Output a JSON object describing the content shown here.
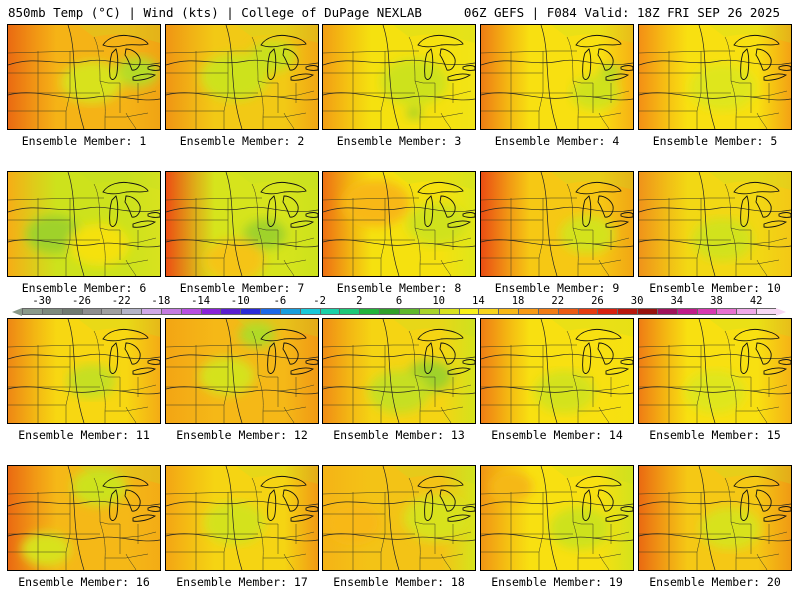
{
  "header": {
    "title": "850mb Temp (°C) | Wind (kts) | College of DuPage NEXLAB",
    "run_info": "06Z GEFS | F084 Valid: 18Z FRI SEP 26 2025"
  },
  "panels": [
    {
      "label": "Ensemble Member: 1",
      "base": "#f5b316",
      "west": "#ea6a12",
      "east": "#f0a414",
      "blobs": [
        [
          "#b5db28",
          0.85,
          0.45,
          0.14
        ],
        [
          "#d8e21e",
          0.55,
          0.55,
          0.2
        ]
      ]
    },
    {
      "label": "Ensemble Member: 2",
      "base": "#f2c915",
      "west": "#f09514",
      "east": "#f1a714",
      "blobs": [
        [
          "#cde21c",
          0.45,
          0.5,
          0.22
        ],
        [
          "#c9e01f",
          0.7,
          0.3,
          0.15
        ]
      ]
    },
    {
      "label": "Ensemble Member: 3",
      "base": "#f5e10f",
      "west": "#f29e14",
      "east": "#f1e416",
      "blobs": [
        [
          "#cde21c",
          0.6,
          0.55,
          0.22
        ],
        [
          "#9fd22b",
          0.6,
          0.85,
          0.05
        ]
      ]
    },
    {
      "label": "Ensemble Member: 4",
      "base": "#f8e011",
      "west": "#ee7c14",
      "east": "#f7b115",
      "blobs": [
        [
          "#d0e21c",
          0.75,
          0.65,
          0.16
        ],
        [
          "#b5db28",
          0.85,
          0.45,
          0.07
        ]
      ]
    },
    {
      "label": "Ensemble Member: 5",
      "base": "#f8e011",
      "west": "#f38f15",
      "east": "#f3a214",
      "blobs": [
        [
          "#dfe61a",
          0.55,
          0.6,
          0.22
        ]
      ]
    },
    {
      "label": "Ensemble Member: 6",
      "base": "#cde21c",
      "west": "#f6ad16",
      "east": "#d8e21e",
      "blobs": [
        [
          "#9fd22b",
          0.3,
          0.6,
          0.18
        ],
        [
          "#f5e10f",
          0.6,
          0.7,
          0.2
        ]
      ]
    },
    {
      "label": "Ensemble Member: 7",
      "base": "#d6e41c",
      "west": "#ec4e13",
      "east": "#cde21c",
      "blobs": [
        [
          "#9fd22b",
          0.65,
          0.6,
          0.14
        ],
        [
          "#f5c415",
          0.45,
          0.85,
          0.2
        ]
      ]
    },
    {
      "label": "Ensemble Member: 8",
      "base": "#f5e10f",
      "west": "#ee7013",
      "east": "#dfe61a",
      "blobs": [
        [
          "#f8b816",
          0.35,
          0.3,
          0.22
        ],
        [
          "#d0e21c",
          0.75,
          0.5,
          0.2
        ]
      ]
    },
    {
      "label": "Ensemble Member: 9",
      "base": "#f6c814",
      "west": "#ea4d13",
      "east": "#f1a714",
      "blobs": [
        [
          "#d4e21c",
          0.7,
          0.6,
          0.18
        ]
      ]
    },
    {
      "label": "Ensemble Member: 10",
      "base": "#f2d814",
      "west": "#f0931a",
      "east": "#f3c816",
      "blobs": [
        [
          "#d2e21c",
          0.55,
          0.65,
          0.2
        ]
      ]
    },
    {
      "label": "Ensemble Member: 11",
      "base": "#f7d712",
      "west": "#ee8714",
      "east": "#f3ac15",
      "blobs": [
        [
          "#c6df22",
          0.55,
          0.6,
          0.16
        ]
      ]
    },
    {
      "label": "Ensemble Member: 12",
      "base": "#f5b817",
      "west": "#f3a514",
      "east": "#f09a14",
      "blobs": [
        [
          "#b0da28",
          0.6,
          0.15,
          0.12
        ],
        [
          "#d5e21e",
          0.4,
          0.55,
          0.18
        ]
      ]
    },
    {
      "label": "Ensemble Member: 13",
      "base": "#f5d413",
      "west": "#f08d15",
      "east": "#d4e21c",
      "blobs": [
        [
          "#9fd22b",
          0.7,
          0.55,
          0.15
        ],
        [
          "#c6df22",
          0.5,
          0.7,
          0.2
        ]
      ]
    },
    {
      "label": "Ensemble Member: 14",
      "base": "#f8e011",
      "west": "#ef7d14",
      "east": "#f5e10f",
      "blobs": [
        [
          "#d4e21c",
          0.55,
          0.7,
          0.2
        ]
      ]
    },
    {
      "label": "Ensemble Member: 15",
      "base": "#f8e011",
      "west": "#ef7d14",
      "east": "#f5b316",
      "blobs": [
        [
          "#dfe61a",
          0.5,
          0.7,
          0.2
        ]
      ]
    },
    {
      "label": "Ensemble Member: 16",
      "base": "#f5b817",
      "west": "#ea6a12",
      "east": "#f3ac15",
      "blobs": [
        [
          "#cde21c",
          0.6,
          0.2,
          0.18
        ],
        [
          "#d8e21e",
          0.25,
          0.8,
          0.16
        ]
      ]
    },
    {
      "label": "Ensemble Member: 17",
      "base": "#f5d413",
      "west": "#f3a514",
      "east": "#f09a14",
      "blobs": [
        [
          "#d4e21c",
          0.45,
          0.55,
          0.2
        ]
      ]
    },
    {
      "label": "Ensemble Member: 18",
      "base": "#f3c316",
      "west": "#f5b316",
      "east": "#d6e41c",
      "blobs": [
        [
          "#d8e21e",
          0.75,
          0.5,
          0.22
        ],
        [
          "#f8b816",
          0.2,
          0.55,
          0.18
        ]
      ]
    },
    {
      "label": "Ensemble Member: 19",
      "base": "#f8e011",
      "west": "#f09514",
      "east": "#d4e21c",
      "blobs": [
        [
          "#cde21c",
          0.65,
          0.6,
          0.2
        ],
        [
          "#f5b817",
          0.2,
          0.2,
          0.14
        ]
      ]
    },
    {
      "label": "Ensemble Member: 20",
      "base": "#f5c815",
      "west": "#ea6a12",
      "east": "#f09a14",
      "blobs": [
        [
          "#d8e21e",
          0.6,
          0.6,
          0.2
        ]
      ]
    }
  ],
  "colorbar": {
    "ticks": [
      "-30",
      "-26",
      "-22",
      "-18",
      "-14",
      "-10",
      "-6",
      "-2",
      "2",
      "6",
      "10",
      "14",
      "18",
      "22",
      "26",
      "30",
      "34",
      "38",
      "42"
    ],
    "colors": [
      "#8a9a8a",
      "#7d8a7d",
      "#707a70",
      "#8e8e8e",
      "#a0a0a0",
      "#b4b4c8",
      "#d0a8e8",
      "#c47ae0",
      "#b84ee0",
      "#8a22d8",
      "#5a1ecf",
      "#2a2ad8",
      "#1c68e8",
      "#189edd",
      "#18c8d8",
      "#1ad0a8",
      "#1ec878",
      "#22b43a",
      "#30a02a",
      "#5fb82c",
      "#a8d42a",
      "#d8e21e",
      "#f8f018",
      "#f8d41a",
      "#f8b816",
      "#f89a14",
      "#f27c14",
      "#ec5a12",
      "#e63a10",
      "#d8200e",
      "#b8160c",
      "#98120e",
      "#a0125a",
      "#c01a8a",
      "#d838b0",
      "#e870d0",
      "#f0a8e8",
      "#f8d8f4"
    ]
  }
}
